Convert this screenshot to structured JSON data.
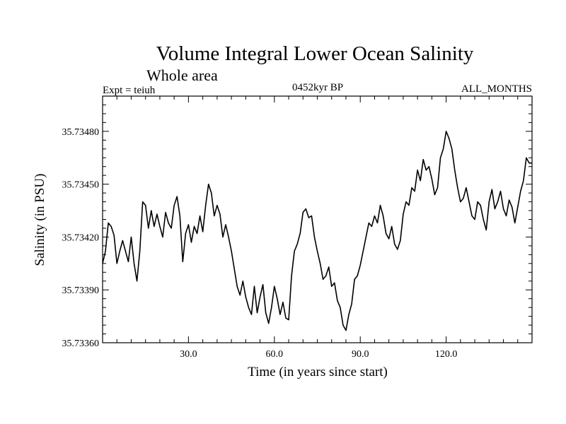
{
  "chart_data": {
    "type": "line",
    "title": "Volume Integral Lower Ocean Salinity",
    "subtitle": "Whole area",
    "left_note": "Expt = teiuh",
    "center_note": "0452kyr BP",
    "right_note": "ALL_MONTHS",
    "xlabel": "Time (in years since start)",
    "ylabel": "Salinity (in PSU)",
    "xlim": [
      0,
      150
    ],
    "ylim": [
      35.7336,
      35.735
    ],
    "xticks": [
      30,
      60,
      90,
      120
    ],
    "xtick_labels": [
      "30.0",
      "60.0",
      "90.0",
      "120.0"
    ],
    "yticks": [
      35.7336,
      35.7339,
      35.7342,
      35.7345,
      35.7348
    ],
    "ytick_labels": [
      "35.73360",
      "35.73390",
      "35.73420",
      "35.73450",
      "35.73480"
    ],
    "series": [
      {
        "name": "salinity",
        "x": [
          0,
          1,
          2,
          3,
          4,
          5,
          6,
          7,
          8,
          9,
          10,
          11,
          12,
          13,
          14,
          15,
          16,
          17,
          18,
          19,
          20,
          21,
          22,
          23,
          24,
          25,
          26,
          27,
          28,
          29,
          30,
          31,
          32,
          33,
          34,
          35,
          36,
          37,
          38,
          39,
          40,
          41,
          42,
          43,
          44,
          45,
          46,
          47,
          48,
          49,
          50,
          51,
          52,
          53,
          54,
          55,
          56,
          57,
          58,
          59,
          60,
          61,
          62,
          63,
          64,
          65,
          66,
          67,
          68,
          69,
          70,
          71,
          72,
          73,
          74,
          75,
          76,
          77,
          78,
          79,
          80,
          81,
          82,
          83,
          84,
          85,
          86,
          87,
          88,
          89,
          90,
          91,
          92,
          93,
          94,
          95,
          96,
          97,
          98,
          99,
          100,
          101,
          102,
          103,
          104,
          105,
          106,
          107,
          108,
          109,
          110,
          111,
          112,
          113,
          114,
          115,
          116,
          117,
          118,
          119,
          120,
          121,
          122,
          123,
          124,
          125,
          126,
          127,
          128,
          129,
          130,
          131,
          132,
          133,
          134,
          135,
          136,
          137,
          138,
          139,
          140,
          141,
          142,
          143,
          144,
          145,
          146,
          147,
          148,
          149,
          150
        ],
        "values": [
          35.73405,
          35.73412,
          35.73428,
          35.73426,
          35.73421,
          35.73405,
          35.73412,
          35.73418,
          35.73412,
          35.73406,
          35.7342,
          35.73405,
          35.73395,
          35.73412,
          35.7344,
          35.73438,
          35.73425,
          35.73435,
          35.73426,
          35.73433,
          35.73426,
          35.7342,
          35.73434,
          35.73428,
          35.73425,
          35.73438,
          35.73443,
          35.73432,
          35.73406,
          35.73422,
          35.73427,
          35.73417,
          35.73426,
          35.73422,
          35.73432,
          35.73423,
          35.73438,
          35.7345,
          35.73445,
          35.73432,
          35.73438,
          35.73433,
          35.7342,
          35.73427,
          35.7342,
          35.73412,
          35.73402,
          35.73392,
          35.73387,
          35.73395,
          35.73386,
          35.7338,
          35.73376,
          35.73392,
          35.73377,
          35.73386,
          35.73393,
          35.73377,
          35.73371,
          35.7338,
          35.73392,
          35.73385,
          35.73376,
          35.73383,
          35.73374,
          35.73373,
          35.73398,
          35.73412,
          35.73416,
          35.73422,
          35.73434,
          35.73436,
          35.73431,
          35.73432,
          35.7342,
          35.73412,
          35.73405,
          35.73396,
          35.73398,
          35.73403,
          35.73392,
          35.73394,
          35.73384,
          35.7338,
          35.7337,
          35.73367,
          35.73376,
          35.73382,
          35.73396,
          35.73398,
          35.73404,
          35.73412,
          35.7342,
          35.73428,
          35.73426,
          35.73432,
          35.73428,
          35.73438,
          35.73432,
          35.73422,
          35.73419,
          35.73426,
          35.73416,
          35.73413,
          35.73418,
          35.73433,
          35.7344,
          35.73438,
          35.73448,
          35.73446,
          35.73458,
          35.73452,
          35.73464,
          35.73458,
          35.7346,
          35.73453,
          35.73444,
          35.73448,
          35.73465,
          35.7347,
          35.7348,
          35.73476,
          35.7347,
          35.73458,
          35.73448,
          35.7344,
          35.73442,
          35.73448,
          35.7344,
          35.73432,
          35.7343,
          35.7344,
          35.73438,
          35.7343,
          35.73424,
          35.7344,
          35.73447,
          35.73436,
          35.7344,
          35.73446,
          35.73436,
          35.73432,
          35.73441,
          35.73437,
          35.73428,
          35.73437,
          35.73446,
          35.73452,
          35.73465,
          35.73462,
          35.73462
        ]
      }
    ]
  }
}
